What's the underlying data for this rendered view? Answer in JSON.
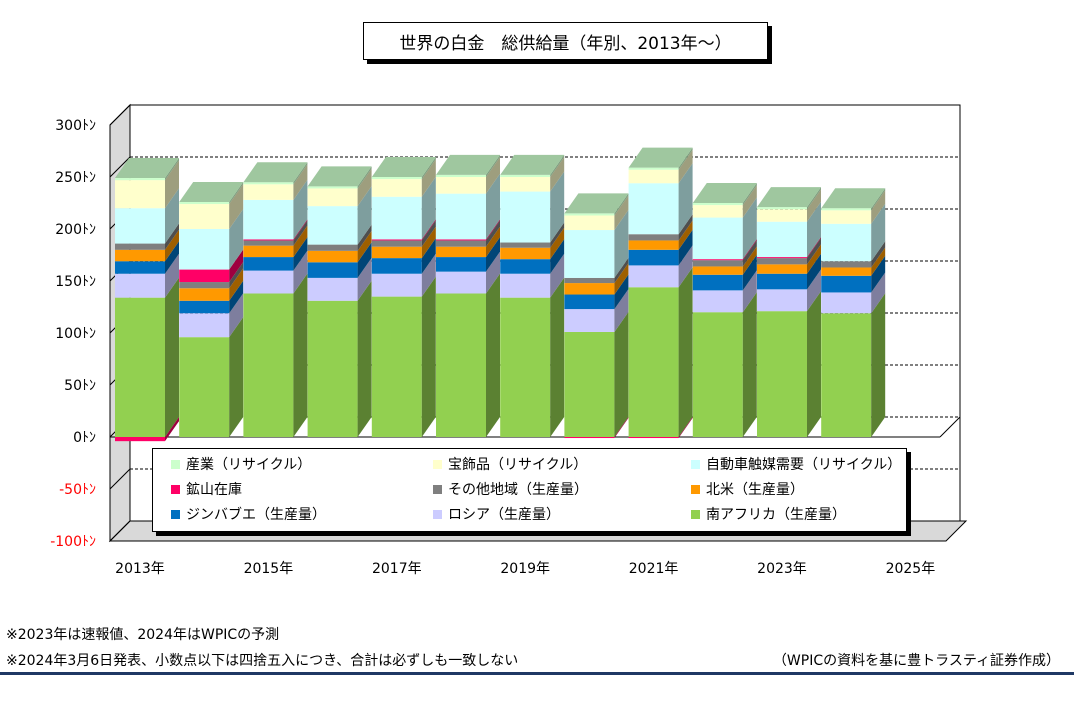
{
  "chart_data": {
    "type": "bar",
    "stacked": true,
    "title": "世界の白金　総供給量（年別、2013年～）",
    "x_tick_labels": [
      "2013年",
      "2015年",
      "2017年",
      "2019年",
      "2021年",
      "2023年",
      "2025年"
    ],
    "years": [
      2013,
      2014,
      2015,
      2016,
      2017,
      2018,
      2019,
      2020,
      2021,
      2022,
      2023,
      2024
    ],
    "y_tick_labels": [
      "300ﾄﾝ",
      "250ﾄﾝ",
      "200ﾄﾝ",
      "150ﾄﾝ",
      "100ﾄﾝ",
      "50ﾄﾝ",
      "0ﾄﾝ",
      "-50ﾄﾝ",
      "-100ﾄﾝ"
    ],
    "ylim": [
      -100,
      300
    ],
    "ytick_step": 50,
    "grid": true,
    "legend_position": "bottom",
    "series": [
      {
        "name": "南アフリカ（生産量）",
        "color": "#92d050",
        "values": [
          134,
          96,
          138,
          131,
          135,
          138,
          134,
          101,
          144,
          120,
          121,
          119
        ]
      },
      {
        "name": "ロシア（生産量）",
        "color": "#ccccff",
        "values": [
          23,
          23,
          22,
          22,
          22,
          21,
          23,
          22,
          21,
          21,
          21,
          20
        ]
      },
      {
        "name": "ジンバブエ（生産量）",
        "color": "#0070c0",
        "values": [
          12,
          12,
          13,
          15,
          15,
          14,
          14,
          14,
          15,
          15,
          15,
          16
        ]
      },
      {
        "name": "北米（生産量）",
        "color": "#ff9900",
        "values": [
          11,
          12,
          11,
          11,
          11,
          10,
          11,
          11,
          9,
          8,
          9,
          8
        ]
      },
      {
        "name": "その他地域（生産量）",
        "color": "#7f7f7f",
        "values": [
          6,
          6,
          5,
          6,
          6,
          6,
          5,
          5,
          6,
          6,
          6,
          6
        ]
      },
      {
        "name": "鉱山在庫",
        "color": "#ff0066",
        "values": [
          -4,
          12,
          1,
          0,
          1,
          1,
          0,
          -1,
          -1,
          1,
          1,
          0
        ]
      },
      {
        "name": "自動車触媒需要（リサイクル）",
        "color": "#ccffff",
        "values": [
          34,
          39,
          38,
          37,
          41,
          44,
          49,
          46,
          49,
          40,
          34,
          36
        ]
      },
      {
        "name": "宝飾品（リサイクル）",
        "color": "#ffffcc",
        "values": [
          27,
          24,
          15,
          17,
          17,
          16,
          14,
          14,
          13,
          12,
          12,
          13
        ]
      },
      {
        "name": "産業（リサイクル）",
        "color": "#ccffcc",
        "values": [
          2,
          2,
          2,
          2,
          2,
          2,
          2,
          2,
          2,
          2,
          2,
          2
        ]
      }
    ]
  },
  "legend": {
    "items": [
      {
        "label": "産業（リサイクル）",
        "color": "#ccffcc"
      },
      {
        "label": "宝飾品（リサイクル）",
        "color": "#ffffcc"
      },
      {
        "label": "自動車触媒需要（リサイクル）",
        "color": "#ccffff"
      },
      {
        "label": "鉱山在庫",
        "color": "#ff0066"
      },
      {
        "label": "その他地域（生産量）",
        "color": "#7f7f7f"
      },
      {
        "label": "北米（生産量）",
        "color": "#ff9900"
      },
      {
        "label": "ジンバブエ（生産量）",
        "color": "#0070c0"
      },
      {
        "label": "ロシア（生産量）",
        "color": "#ccccff"
      },
      {
        "label": "南アフリカ（生産量）",
        "color": "#92d050"
      }
    ]
  },
  "notes": {
    "line1": "※2023年は速報値、2024年はWPICの予測",
    "line2": "※2024年3月6日発表、小数点以下は四捨五入につき、合計は必ずしも一致しない",
    "source": "（WPICの資料を基に豊トラスティ証券作成）"
  },
  "colors": {
    "negative_tick_label": "#ff0000",
    "wall": "#ffffff",
    "floor": "#ffffff",
    "side_wall": "#d9d9d9",
    "footer_rule": "#1f3864"
  }
}
